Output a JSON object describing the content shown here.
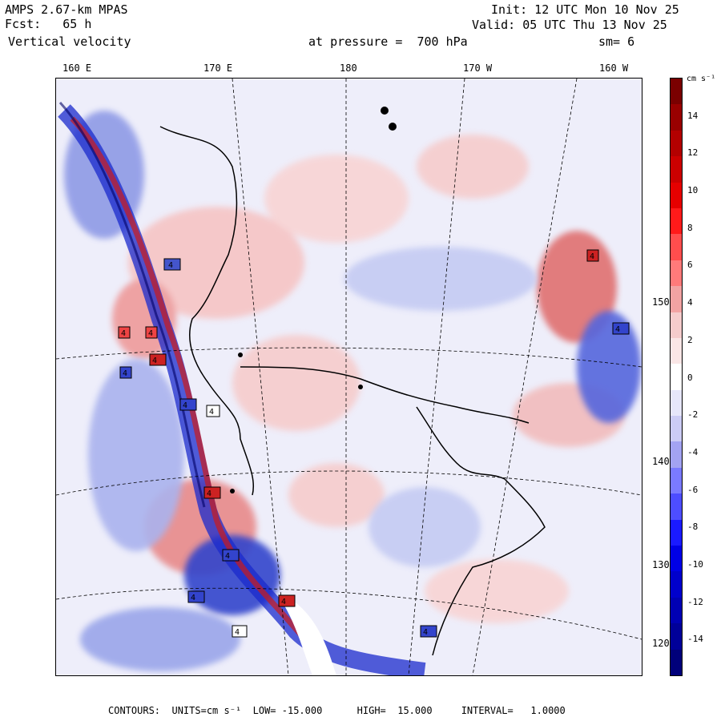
{
  "header": {
    "model": "AMPS 2.67-km MPAS",
    "forecast_label": "Fcst:",
    "forecast_value": "65 h",
    "field": "Vertical velocity",
    "init": "Init: 12 UTC Mon 10 Nov 25",
    "valid": "Valid: 05 UTC Thu 13 Nov 25",
    "level": "at pressure =  700 hPa",
    "smoothing": "sm= 6"
  },
  "map": {
    "top_longitude_labels": [
      "160 E",
      "170 E",
      "180",
      "170 W",
      "160 W"
    ],
    "right_longitude_labels": [
      "150 W",
      "140 W",
      "130 W",
      "120 W"
    ],
    "station_markers": [
      "4",
      "4",
      "4",
      "4",
      "4",
      "4",
      "4",
      "4",
      "4",
      "4",
      "4",
      "4",
      "4",
      "4",
      "4"
    ],
    "colors": {
      "background": "#f0f0fb",
      "positive": "#cc2222",
      "negative": "#2233cc",
      "coast": "#000000"
    }
  },
  "colorbar": {
    "units": "cm s⁻¹",
    "tick_labels": [
      "14",
      "12",
      "10",
      "8",
      "6",
      "4",
      "2",
      "0",
      "-2",
      "-4",
      "-6",
      "-8",
      "-10",
      "-12",
      "-14"
    ],
    "colors": [
      "#7a0000",
      "#990000",
      "#b30000",
      "#cc0000",
      "#e60000",
      "#ff1a1a",
      "#ff4d4d",
      "#ff7a7a",
      "#f2a3a3",
      "#f5cccc",
      "#fae6e6",
      "#ffffff",
      "#e6e6fa",
      "#ccccf5",
      "#a3a3f2",
      "#7a7aff",
      "#4d4dff",
      "#1a1aff",
      "#0000e6",
      "#0000cc",
      "#0000b3",
      "#000099",
      "#00007a"
    ]
  },
  "footer": {
    "text": "CONTOURS:  UNITS=cm s⁻¹  LOW= -15.000      HIGH=  15.000     INTERVAL=   1.0000"
  }
}
